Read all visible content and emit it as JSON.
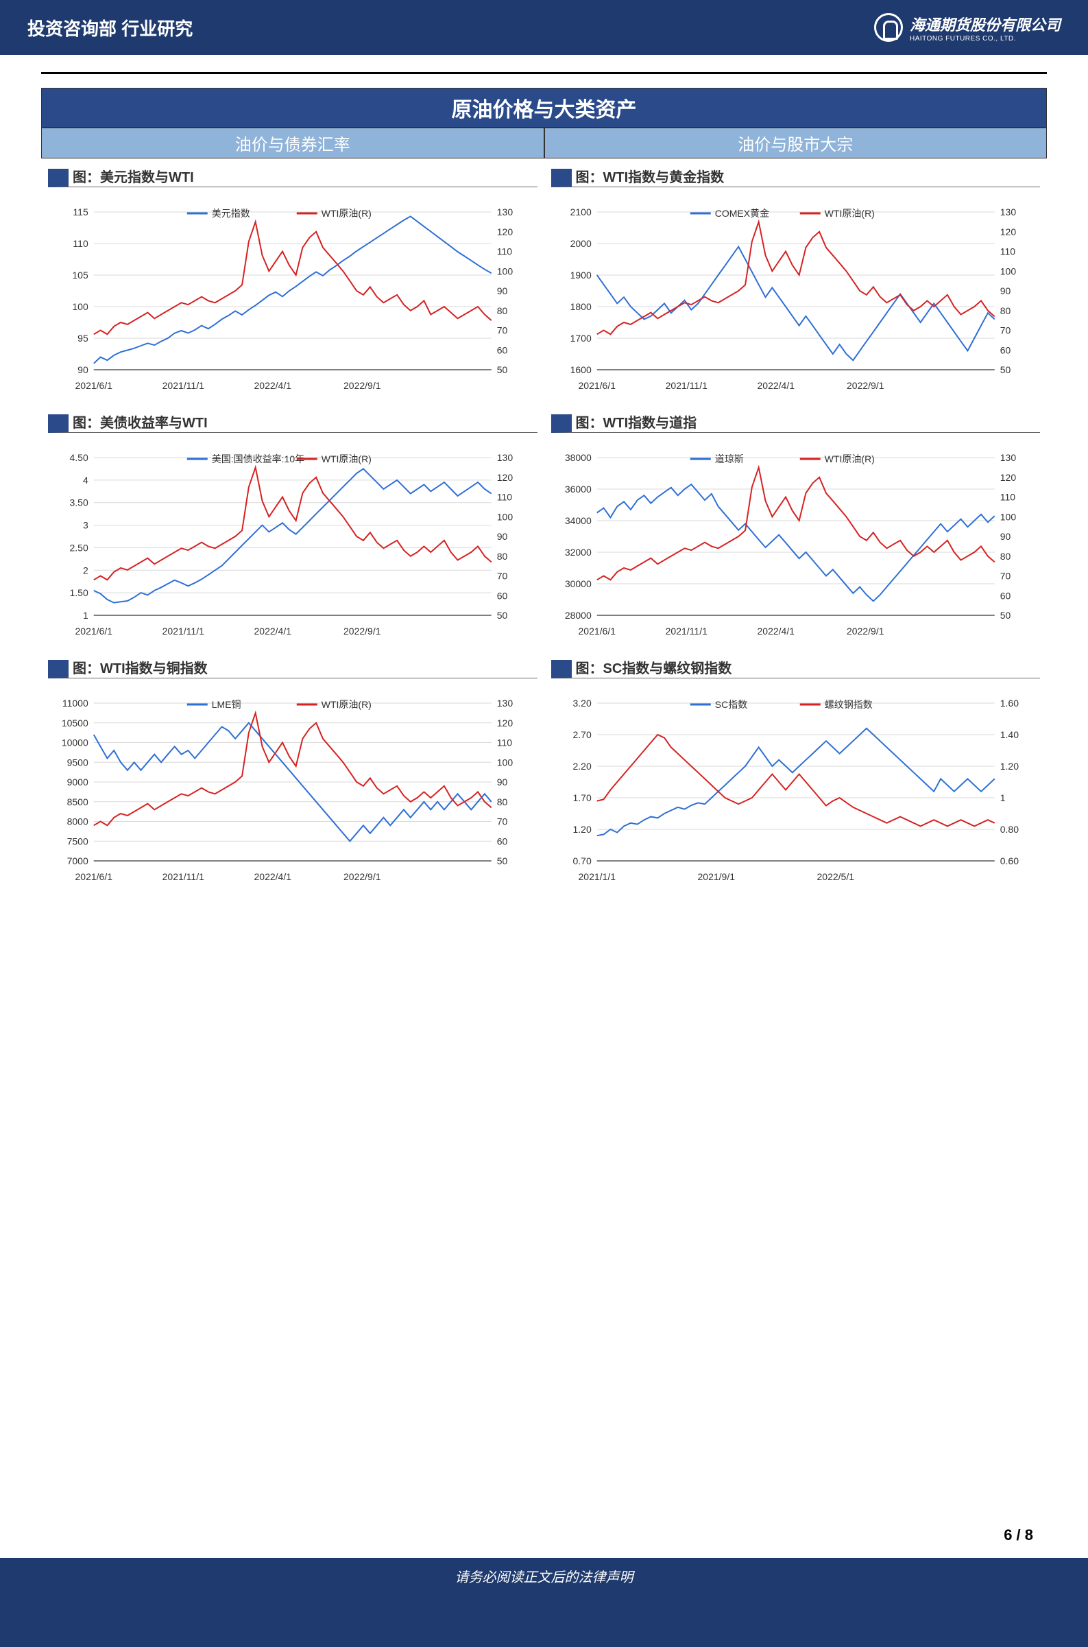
{
  "header": {
    "dept": "投资咨询部  行业研究",
    "brand_cn": "海通期货股份有限公司",
    "brand_en": "HAITONG FUTURES CO., LTD."
  },
  "section_title": "原油价格与大类资产",
  "subheads": [
    "油价与债券汇率",
    "油价与股市大宗"
  ],
  "page_num": "6 / 8",
  "disclaimer": "请务必阅读正文后的法律声明",
  "colors": {
    "blue": "#2e6fd6",
    "red": "#d62222",
    "axis": "#555",
    "grid": "#d9d9d9"
  },
  "xticks_main": [
    "2021/6/1",
    "2021/11/1",
    "2022/4/1",
    "2022/9/1"
  ],
  "xticks_alt": [
    "2021/1/1",
    "2021/9/1",
    "2022/5/1"
  ],
  "charts": [
    {
      "title": "图：美元指数与WTI",
      "legend": [
        "美元指数",
        "WTI原油(R)"
      ],
      "yL": {
        "min": 90,
        "max": 115,
        "step": 5
      },
      "yR": {
        "min": 50,
        "max": 130,
        "step": 10
      },
      "xticks": "main",
      "sL": [
        91,
        92,
        91.5,
        92.3,
        92.8,
        93.1,
        93.4,
        93.8,
        94.2,
        93.9,
        94.5,
        95.0,
        95.8,
        96.2,
        95.8,
        96.3,
        97.0,
        96.5,
        97.2,
        98.0,
        98.6,
        99.3,
        98.7,
        99.5,
        100.2,
        101.0,
        101.8,
        102.3,
        101.6,
        102.5,
        103.2,
        104.0,
        104.8,
        105.5,
        104.9,
        105.8,
        106.5,
        107.3,
        108.0,
        108.8,
        109.5,
        110.2,
        110.9,
        111.6,
        112.3,
        113.0,
        113.7,
        114.3,
        113.5,
        112.7,
        111.9,
        111.1,
        110.3,
        109.5,
        108.7,
        108.0,
        107.3,
        106.6,
        105.9,
        105.3
      ],
      "sR": [
        68,
        70,
        68,
        72,
        74,
        73,
        75,
        77,
        79,
        76,
        78,
        80,
        82,
        84,
        83,
        85,
        87,
        85,
        84,
        86,
        88,
        90,
        93,
        115,
        125,
        108,
        100,
        105,
        110,
        103,
        98,
        112,
        117,
        120,
        112,
        108,
        104,
        100,
        95,
        90,
        88,
        92,
        87,
        84,
        86,
        88,
        83,
        80,
        82,
        85,
        78,
        80,
        82,
        79,
        76,
        78,
        80,
        82,
        78,
        75
      ]
    },
    {
      "title": "图：WTI指数与黄金指数",
      "legend": [
        "COMEX黄金",
        "WTI原油(R)"
      ],
      "yL": {
        "min": 1600,
        "max": 2100,
        "step": 100
      },
      "yR": {
        "min": 50,
        "max": 130,
        "step": 10
      },
      "xticks": "main",
      "sL": [
        1900,
        1870,
        1840,
        1810,
        1830,
        1800,
        1780,
        1760,
        1770,
        1790,
        1810,
        1780,
        1800,
        1820,
        1790,
        1810,
        1840,
        1870,
        1900,
        1930,
        1960,
        1990,
        1950,
        1910,
        1870,
        1830,
        1860,
        1830,
        1800,
        1770,
        1740,
        1770,
        1740,
        1710,
        1680,
        1650,
        1680,
        1650,
        1630,
        1660,
        1690,
        1720,
        1750,
        1780,
        1810,
        1840,
        1810,
        1780,
        1750,
        1780,
        1810,
        1780,
        1750,
        1720,
        1690,
        1660,
        1700,
        1740,
        1780,
        1760
      ],
      "sR": [
        68,
        70,
        68,
        72,
        74,
        73,
        75,
        77,
        79,
        76,
        78,
        80,
        82,
        84,
        83,
        85,
        87,
        85,
        84,
        86,
        88,
        90,
        93,
        115,
        125,
        108,
        100,
        105,
        110,
        103,
        98,
        112,
        117,
        120,
        112,
        108,
        104,
        100,
        95,
        90,
        88,
        92,
        87,
        84,
        86,
        88,
        83,
        80,
        82,
        85,
        82,
        85,
        88,
        82,
        78,
        80,
        82,
        85,
        80,
        77
      ]
    },
    {
      "title": "图：美债收益率与WTI",
      "legend": [
        "美国:国债收益率:10年",
        "WTI原油(R)"
      ],
      "yL": {
        "min": 1,
        "max": 4.5,
        "step": 0.5
      },
      "yR": {
        "min": 50,
        "max": 130,
        "step": 10
      },
      "xticks": "main",
      "sL": [
        1.55,
        1.48,
        1.35,
        1.28,
        1.3,
        1.32,
        1.4,
        1.5,
        1.45,
        1.55,
        1.62,
        1.7,
        1.78,
        1.72,
        1.65,
        1.72,
        1.8,
        1.9,
        2.0,
        2.1,
        2.25,
        2.4,
        2.55,
        2.7,
        2.85,
        3.0,
        2.85,
        2.95,
        3.05,
        2.9,
        2.8,
        2.95,
        3.1,
        3.25,
        3.4,
        3.55,
        3.7,
        3.85,
        4.0,
        4.15,
        4.25,
        4.1,
        3.95,
        3.8,
        3.9,
        4.0,
        3.85,
        3.7,
        3.8,
        3.9,
        3.75,
        3.85,
        3.95,
        3.8,
        3.65,
        3.75,
        3.85,
        3.95,
        3.8,
        3.7
      ],
      "sR": [
        68,
        70,
        68,
        72,
        74,
        73,
        75,
        77,
        79,
        76,
        78,
        80,
        82,
        84,
        83,
        85,
        87,
        85,
        84,
        86,
        88,
        90,
        93,
        115,
        125,
        108,
        100,
        105,
        110,
        103,
        98,
        112,
        117,
        120,
        112,
        108,
        104,
        100,
        95,
        90,
        88,
        92,
        87,
        84,
        86,
        88,
        83,
        80,
        82,
        85,
        82,
        85,
        88,
        82,
        78,
        80,
        82,
        85,
        80,
        77
      ]
    },
    {
      "title": "图：WTI指数与道指",
      "legend": [
        "道琼斯",
        "WTI原油(R)"
      ],
      "yL": {
        "min": 28000,
        "max": 38000,
        "step": 2000
      },
      "yR": {
        "min": 50,
        "max": 130,
        "step": 10
      },
      "xticks": "main",
      "sL": [
        34500,
        34800,
        34200,
        34900,
        35200,
        34700,
        35300,
        35600,
        35100,
        35500,
        35800,
        36100,
        35600,
        36000,
        36300,
        35800,
        35300,
        35700,
        34900,
        34400,
        33900,
        33400,
        33800,
        33300,
        32800,
        32300,
        32700,
        33100,
        32600,
        32100,
        31600,
        32000,
        31500,
        31000,
        30500,
        30900,
        30400,
        29900,
        29400,
        29800,
        29300,
        28900,
        29300,
        29800,
        30300,
        30800,
        31300,
        31800,
        32300,
        32800,
        33300,
        33800,
        33300,
        33700,
        34100,
        33600,
        34000,
        34400,
        33900,
        34300
      ],
      "sR": [
        68,
        70,
        68,
        72,
        74,
        73,
        75,
        77,
        79,
        76,
        78,
        80,
        82,
        84,
        83,
        85,
        87,
        85,
        84,
        86,
        88,
        90,
        93,
        115,
        125,
        108,
        100,
        105,
        110,
        103,
        98,
        112,
        117,
        120,
        112,
        108,
        104,
        100,
        95,
        90,
        88,
        92,
        87,
        84,
        86,
        88,
        83,
        80,
        82,
        85,
        82,
        85,
        88,
        82,
        78,
        80,
        82,
        85,
        80,
        77
      ]
    },
    {
      "title": "图：WTI指数与铜指数",
      "legend": [
        "LME铜",
        "WTI原油(R)"
      ],
      "yL": {
        "min": 7000,
        "max": 11000,
        "step": 500
      },
      "yR": {
        "min": 50,
        "max": 130,
        "step": 10
      },
      "xticks": "main",
      "sL": [
        10200,
        9900,
        9600,
        9800,
        9500,
        9300,
        9500,
        9300,
        9500,
        9700,
        9500,
        9700,
        9900,
        9700,
        9800,
        9600,
        9800,
        10000,
        10200,
        10400,
        10300,
        10100,
        10300,
        10500,
        10300,
        10100,
        9900,
        9700,
        9500,
        9300,
        9100,
        8900,
        8700,
        8500,
        8300,
        8100,
        7900,
        7700,
        7500,
        7700,
        7900,
        7700,
        7900,
        8100,
        7900,
        8100,
        8300,
        8100,
        8300,
        8500,
        8300,
        8500,
        8300,
        8500,
        8700,
        8500,
        8300,
        8500,
        8700,
        8500
      ],
      "sR": [
        68,
        70,
        68,
        72,
        74,
        73,
        75,
        77,
        79,
        76,
        78,
        80,
        82,
        84,
        83,
        85,
        87,
        85,
        84,
        86,
        88,
        90,
        93,
        115,
        125,
        108,
        100,
        105,
        110,
        103,
        98,
        112,
        117,
        120,
        112,
        108,
        104,
        100,
        95,
        90,
        88,
        92,
        87,
        84,
        86,
        88,
        83,
        80,
        82,
        85,
        82,
        85,
        88,
        82,
        78,
        80,
        82,
        85,
        80,
        77
      ]
    },
    {
      "title": "图：SC指数与螺纹钢指数",
      "legend": [
        "SC指数",
        "螺纹钢指数"
      ],
      "yL": {
        "min": 0.7,
        "max": 3.2,
        "step": 0.5,
        "ticks": [
          0.7,
          1.2,
          1.7,
          2.2,
          2.7,
          3.2
        ]
      },
      "yR": {
        "min": 0.6,
        "max": 1.6,
        "step": 0.2,
        "ticks": [
          0.6,
          0.8,
          1.0,
          1.2,
          1.4,
          1.6
        ]
      },
      "xticks": "alt",
      "sL": [
        1.1,
        1.12,
        1.2,
        1.15,
        1.25,
        1.3,
        1.28,
        1.35,
        1.4,
        1.38,
        1.45,
        1.5,
        1.55,
        1.52,
        1.58,
        1.62,
        1.6,
        1.7,
        1.8,
        1.9,
        2.0,
        2.1,
        2.2,
        2.35,
        2.5,
        2.35,
        2.2,
        2.3,
        2.2,
        2.1,
        2.2,
        2.3,
        2.4,
        2.5,
        2.6,
        2.5,
        2.4,
        2.5,
        2.6,
        2.7,
        2.8,
        2.7,
        2.6,
        2.5,
        2.4,
        2.3,
        2.2,
        2.1,
        2.0,
        1.9,
        1.8,
        2.0,
        1.9,
        1.8,
        1.9,
        2.0,
        1.9,
        1.8,
        1.9,
        2.0
      ],
      "sR": [
        0.98,
        0.99,
        1.05,
        1.1,
        1.15,
        1.2,
        1.25,
        1.3,
        1.35,
        1.4,
        1.38,
        1.32,
        1.28,
        1.24,
        1.2,
        1.16,
        1.12,
        1.08,
        1.04,
        1.0,
        0.98,
        0.96,
        0.98,
        1.0,
        1.05,
        1.1,
        1.15,
        1.1,
        1.05,
        1.1,
        1.15,
        1.1,
        1.05,
        1.0,
        0.95,
        0.98,
        1.0,
        0.97,
        0.94,
        0.92,
        0.9,
        0.88,
        0.86,
        0.84,
        0.86,
        0.88,
        0.86,
        0.84,
        0.82,
        0.84,
        0.86,
        0.84,
        0.82,
        0.84,
        0.86,
        0.84,
        0.82,
        0.84,
        0.86,
        0.84
      ]
    }
  ]
}
